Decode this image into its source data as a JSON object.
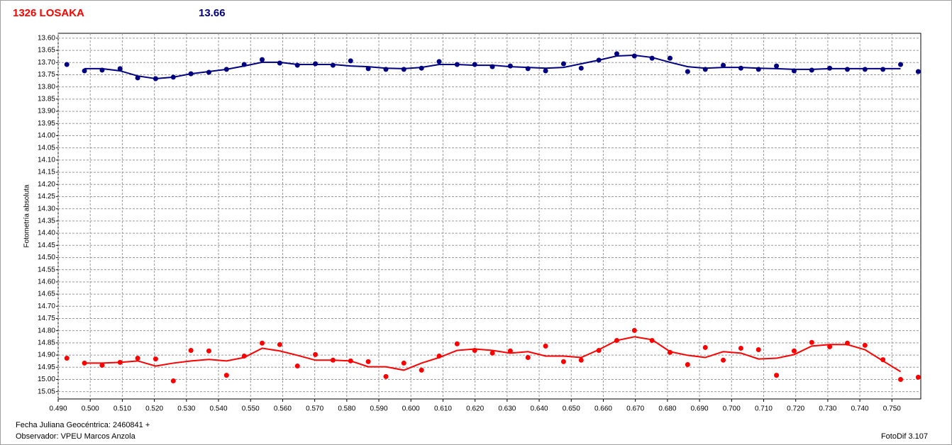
{
  "chart_data": {
    "type": "scatter",
    "title": "1326 LOSAKA",
    "subtitle": "13.66",
    "y_label": "Fotometría absoluta",
    "annotations": [
      "Fecha Juliana Geocéntrica: 2460841 +",
      "Observador: VPEU Marcos Anzola",
      "FotoDif 3.107"
    ],
    "y_inverted": true,
    "grid": true,
    "xlim": [
      0.49,
      0.759
    ],
    "ylim": [
      13.58,
      15.08
    ],
    "xticks": [
      {
        "value": 0.49,
        "label": "0.490"
      },
      {
        "value": 0.5,
        "label": "0.500"
      },
      {
        "value": 0.51,
        "label": "0.510"
      },
      {
        "value": 0.52,
        "label": "0.520"
      },
      {
        "value": 0.53,
        "label": "0.530"
      },
      {
        "value": 0.54,
        "label": "0.540"
      },
      {
        "value": 0.55,
        "label": "0.550"
      },
      {
        "value": 0.56,
        "label": "0.560"
      },
      {
        "value": 0.57,
        "label": "0.570"
      },
      {
        "value": 0.58,
        "label": "0.580"
      },
      {
        "value": 0.59,
        "label": "0.590"
      },
      {
        "value": 0.6,
        "label": "0.600"
      },
      {
        "value": 0.61,
        "label": "0.610"
      },
      {
        "value": 0.62,
        "label": "0.620"
      },
      {
        "value": 0.63,
        "label": "0.630"
      },
      {
        "value": 0.64,
        "label": "0.640"
      },
      {
        "value": 0.65,
        "label": "0.650"
      },
      {
        "value": 0.66,
        "label": "0.660"
      },
      {
        "value": 0.67,
        "label": "0.670"
      },
      {
        "value": 0.68,
        "label": "0.680"
      },
      {
        "value": 0.69,
        "label": "0.690"
      },
      {
        "value": 0.7,
        "label": "0.700"
      },
      {
        "value": 0.71,
        "label": "0.710"
      },
      {
        "value": 0.72,
        "label": "0.720"
      },
      {
        "value": 0.73,
        "label": "0.730"
      },
      {
        "value": 0.74,
        "label": "0.740"
      },
      {
        "value": 0.75,
        "label": "0.750"
      }
    ],
    "yticks": [
      {
        "value": 13.6,
        "label": "13.60"
      },
      13.65,
      {
        "value": 13.7,
        "label": "13.70"
      },
      13.75,
      {
        "value": 13.8,
        "label": "13.80"
      },
      13.85,
      {
        "value": 13.9,
        "label": "13.90"
      },
      13.95,
      {
        "value": 14.0,
        "label": "14.00"
      },
      14.05,
      {
        "value": 14.1,
        "label": "14.10"
      },
      14.15,
      {
        "value": 14.2,
        "label": "14.20"
      },
      14.25,
      {
        "value": 14.3,
        "label": "14.30"
      },
      14.35,
      {
        "value": 14.4,
        "label": "14.40"
      },
      14.45,
      {
        "value": 14.5,
        "label": "14.50"
      },
      14.55,
      {
        "value": 14.6,
        "label": "14.60"
      },
      14.65,
      {
        "value": 14.7,
        "label": "14.70"
      },
      14.75,
      {
        "value": 14.8,
        "label": "14.80"
      },
      14.85,
      {
        "value": 14.9,
        "label": "14.90"
      },
      14.95,
      {
        "value": 15.0,
        "label": "15.00"
      },
      15.05
    ],
    "x": [
      0.4927,
      0.4982,
      0.5037,
      0.5093,
      0.5148,
      0.5204,
      0.5259,
      0.5314,
      0.537,
      0.5425,
      0.548,
      0.5536,
      0.5591,
      0.5646,
      0.5702,
      0.5757,
      0.5812,
      0.5867,
      0.5922,
      0.5978,
      0.6033,
      0.6088,
      0.6144,
      0.6199,
      0.6254,
      0.631,
      0.6365,
      0.642,
      0.6476,
      0.6531,
      0.6586,
      0.6642,
      0.6697,
      0.6752,
      0.6808,
      0.6863,
      0.6918,
      0.6974,
      0.7029,
      0.7084,
      0.714,
      0.7195,
      0.725,
      0.7306,
      0.7361,
      0.7416,
      0.7472,
      0.7527,
      0.7582
    ],
    "series": [
      {
        "style": "markers",
        "color": "#000080",
        "values": [
          13.708,
          13.734,
          13.731,
          13.725,
          13.763,
          13.766,
          13.76,
          13.746,
          13.74,
          13.728,
          13.708,
          13.688,
          13.702,
          13.711,
          13.705,
          13.711,
          13.693,
          13.725,
          13.728,
          13.728,
          13.723,
          13.696,
          13.708,
          13.708,
          13.717,
          13.714,
          13.725,
          13.734,
          13.705,
          13.723,
          13.69,
          13.664,
          13.673,
          13.682,
          13.682,
          13.737,
          13.728,
          13.711,
          13.723,
          13.728,
          13.714,
          13.734,
          13.731,
          13.723,
          13.728,
          13.728,
          13.728,
          13.708,
          13.737
        ]
      },
      {
        "style": "line",
        "color": "#000080",
        "values": [
          null,
          13.725,
          13.725,
          13.734,
          13.755,
          13.766,
          13.76,
          13.746,
          13.737,
          13.728,
          13.714,
          13.699,
          13.699,
          13.708,
          13.708,
          13.708,
          13.714,
          13.717,
          13.723,
          13.725,
          13.72,
          13.708,
          13.708,
          13.711,
          13.711,
          13.717,
          13.72,
          13.723,
          13.72,
          13.705,
          13.69,
          13.673,
          13.67,
          13.679,
          13.699,
          13.717,
          13.723,
          13.72,
          13.72,
          13.723,
          13.725,
          13.728,
          13.728,
          13.725,
          13.725,
          13.725,
          13.725,
          13.725,
          null
        ]
      },
      {
        "style": "markers",
        "color": "#ff0000",
        "values": [
          14.913,
          14.933,
          14.942,
          14.93,
          14.913,
          14.916,
          15.006,
          14.881,
          14.883,
          14.983,
          14.904,
          14.851,
          14.857,
          14.945,
          14.898,
          14.921,
          14.924,
          14.927,
          14.988,
          14.933,
          14.962,
          14.904,
          14.854,
          14.881,
          14.892,
          14.883,
          14.91,
          14.863,
          14.927,
          14.921,
          14.881,
          14.84,
          14.799,
          14.84,
          14.889,
          14.939,
          14.869,
          14.921,
          14.872,
          14.878,
          14.983,
          14.883,
          14.848,
          14.866,
          14.851,
          14.86,
          14.919,
          15.0,
          14.991
        ]
      },
      {
        "style": "line",
        "color": "#ff0000",
        "values": [
          null,
          14.933,
          14.933,
          14.93,
          14.924,
          14.945,
          14.933,
          14.924,
          14.918,
          14.924,
          14.91,
          14.872,
          14.883,
          14.901,
          14.921,
          14.921,
          14.924,
          14.948,
          14.948,
          14.962,
          14.933,
          14.91,
          14.881,
          14.875,
          14.881,
          14.892,
          14.886,
          14.904,
          14.904,
          14.91,
          14.878,
          14.84,
          14.825,
          14.837,
          14.886,
          14.901,
          14.91,
          14.886,
          14.892,
          14.916,
          14.913,
          14.898,
          14.863,
          14.857,
          14.857,
          14.878,
          14.924,
          14.968,
          null
        ]
      }
    ]
  }
}
